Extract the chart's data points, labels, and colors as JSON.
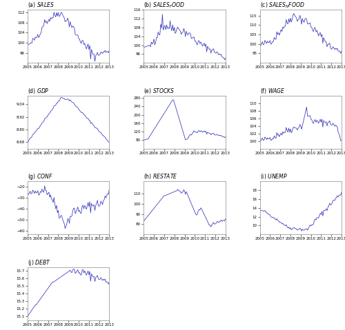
{
  "title_color": "#000000",
  "line_color": "#3333bb",
  "bg_color": "#ffffff",
  "subplots": [
    {
      "label_prefix": "(a) ",
      "label_var": "SALES",
      "ylim": [
        92,
        113
      ],
      "yticks": [
        96,
        100,
        104,
        108,
        112
      ],
      "pattern": "sales"
    },
    {
      "label_prefix": "(b) ",
      "label_var": "SALES_FOOD",
      "ylim": [
        92,
        116
      ],
      "yticks": [
        96,
        100,
        104,
        108,
        112,
        116
      ],
      "pattern": "sales_food"
    },
    {
      "label_prefix": "(c) ",
      "label_var": "SALES_NFOOD",
      "ylim": [
        90,
        118
      ],
      "yticks": [
        95,
        100,
        105,
        110,
        115
      ],
      "pattern": "sales_nfood"
    },
    {
      "label_prefix": "(d) ",
      "label_var": "GDP",
      "ylim": [
        8.62,
        9.12
      ],
      "yticks": [
        8.68,
        8.8,
        8.92,
        9.04
      ],
      "pattern": "gdp"
    },
    {
      "label_prefix": "(e) ",
      "label_var": "STOCKS",
      "ylim": [
        40,
        290
      ],
      "yticks": [
        80,
        120,
        160,
        200,
        240,
        280
      ],
      "pattern": "stocks"
    },
    {
      "label_prefix": "(f) ",
      "label_var": "WAGE",
      "ylim": [
        98,
        112
      ],
      "yticks": [
        100,
        102,
        104,
        106,
        108,
        110
      ],
      "pattern": "wage"
    },
    {
      "label_prefix": "(g) ",
      "label_var": "CONF",
      "ylim": [
        -63,
        -15
      ],
      "yticks": [
        -60,
        -50,
        -40,
        -30,
        -20
      ],
      "pattern": "conf"
    },
    {
      "label_prefix": "(h) ",
      "label_var": "RESTATE",
      "ylim": [
        70,
        122
      ],
      "yticks": [
        80,
        90,
        100,
        110
      ],
      "pattern": "restate"
    },
    {
      "label_prefix": "(i) ",
      "label_var": "UNEMP",
      "ylim": [
        8,
        20
      ],
      "yticks": [
        10,
        12,
        14,
        16,
        18
      ],
      "pattern": "unemp"
    },
    {
      "label_prefix": "(j) ",
      "label_var": "DEBT",
      "ylim": [
        15.05,
        15.75
      ],
      "yticks": [
        15.1,
        15.2,
        15.3,
        15.4,
        15.5,
        15.6,
        15.7
      ],
      "pattern": "debt"
    }
  ]
}
